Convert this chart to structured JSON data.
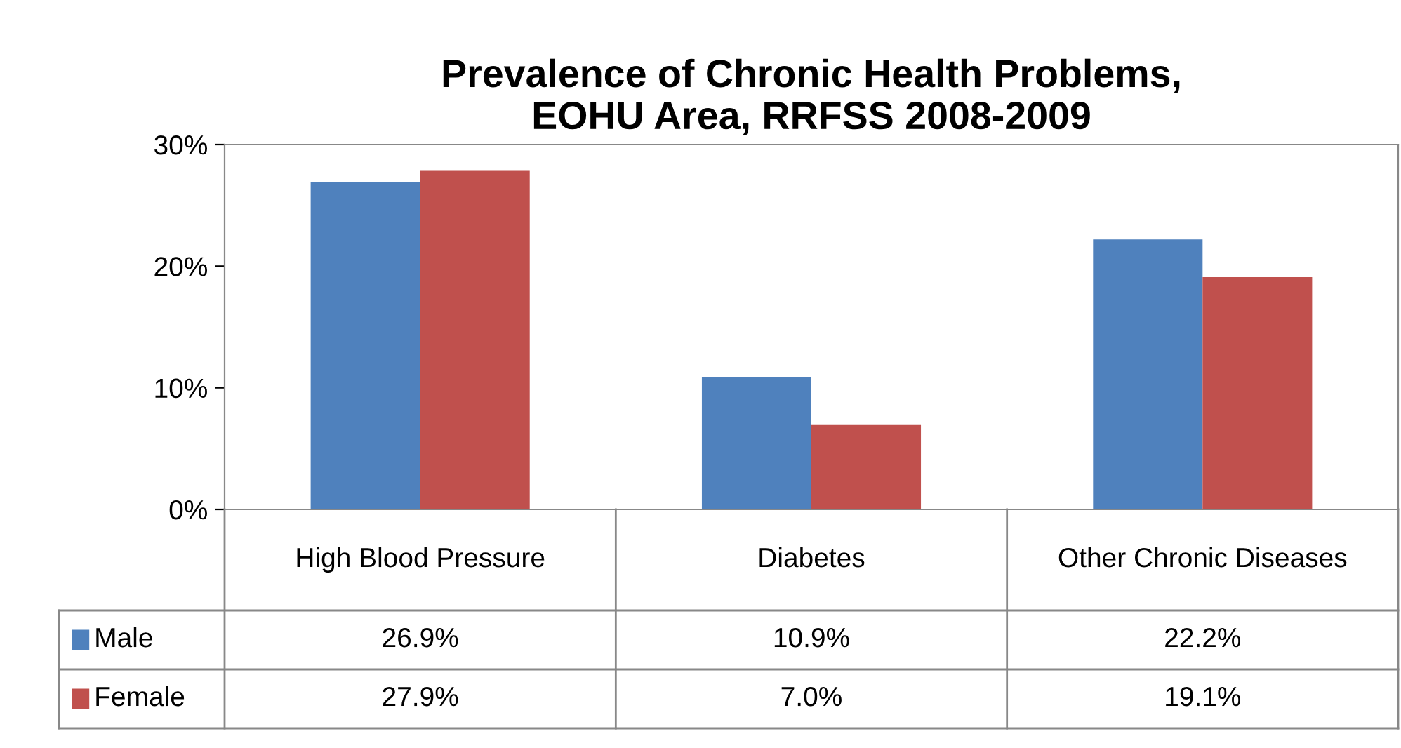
{
  "chart_data": {
    "type": "bar",
    "title": "Prevalence of Chronic Health Problems,\nEOHU Area, RRFSS 2008-2009",
    "categories": [
      "High Blood Pressure",
      "Diabetes",
      "Other Chronic Diseases"
    ],
    "series": [
      {
        "name": "Male",
        "color": "#4f81bd",
        "values": [
          26.9,
          10.9,
          22.2
        ],
        "value_labels": [
          "26.9%",
          "10.9%",
          "22.2%"
        ]
      },
      {
        "name": "Female",
        "color": "#c0504d",
        "values": [
          27.9,
          7.0,
          19.1
        ],
        "value_labels": [
          "27.9%",
          "7.0%",
          "19.1%"
        ]
      }
    ],
    "ylim": [
      0,
      30
    ],
    "yticks": [
      {
        "value": 0,
        "label": "0%"
      },
      {
        "value": 10,
        "label": "10%"
      },
      {
        "value": 20,
        "label": "20%"
      },
      {
        "value": 30,
        "label": "30%"
      }
    ],
    "grid": false,
    "legend": "bottom"
  }
}
